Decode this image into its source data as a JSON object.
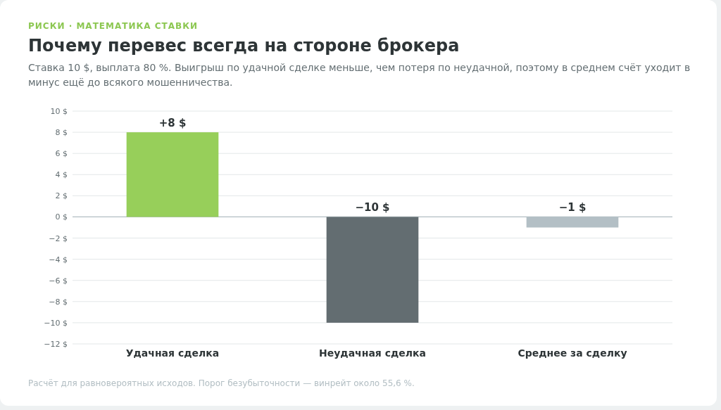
{
  "chart_data": {
    "type": "bar",
    "title": "Почему перевес всегда на стороне брокера",
    "subtitle": "Ставка 10 $, выплата 80 %. Выигрыш по удачной сделке меньше, чем потеря по неудачной, поэтому в среднем счёт уходит в минус ещё до всякого мошенничества.",
    "annotations": [
      "РИСКИ · МАТЕМАТИКА СТАВКИ",
      "Расчёт для равновероятных исходов. Порог безубыточности — винрейт около 55,6 %."
    ],
    "categories": [
      "Удачная сделка",
      "Неудачная сделка",
      "Среднее за сделку"
    ],
    "values": [
      8,
      -10,
      -1
    ],
    "colors": [
      "#97cf5a",
      "#636d71",
      "#b3bfc5"
    ],
    "value_labels": [
      "+8 $",
      "−10 $",
      "−1 $"
    ],
    "ylim": [
      -12,
      10
    ],
    "yticks": [
      {
        "value": 10,
        "label": "10 $"
      },
      {
        "value": 8,
        "label": "8 $"
      },
      {
        "value": 6,
        "label": "6 $"
      },
      {
        "value": 4,
        "label": "4 $"
      },
      {
        "value": 2,
        "label": "2 $"
      },
      {
        "value": 0,
        "label": "0 $"
      },
      {
        "value": -2,
        "label": "−2 $"
      },
      {
        "value": -4,
        "label": "−4 $"
      },
      {
        "value": -6,
        "label": "−6 $"
      },
      {
        "value": -8,
        "label": "−8 $"
      },
      {
        "value": -10,
        "label": "−10 $"
      },
      {
        "value": -12,
        "label": "−12 $"
      }
    ],
    "grid": "y"
  }
}
